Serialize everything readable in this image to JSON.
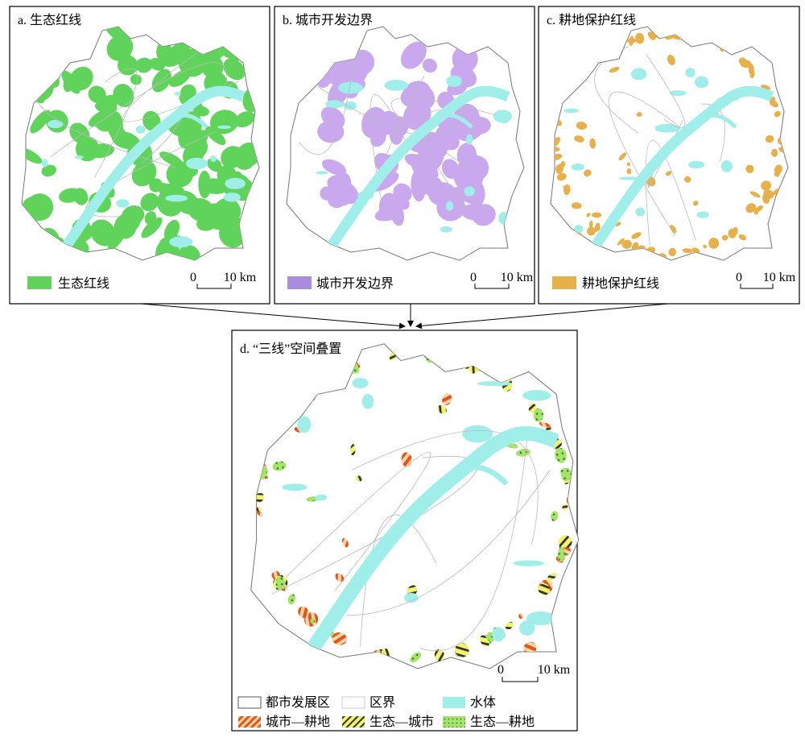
{
  "panels": [
    {
      "title": "a. 生态红线",
      "legend": "生态红线",
      "scale": [
        "0",
        "10 km"
      ]
    },
    {
      "title": "b. 城市开发边界",
      "legend": "城市开发边界",
      "scale": [
        "0",
        "10 km"
      ]
    },
    {
      "title": "c. 耕地保护红线",
      "legend": "耕地保护红线",
      "scale": [
        "0",
        "10 km"
      ]
    }
  ],
  "overlay": {
    "title": "d. “三线”空间叠置",
    "legend": [
      "都市发展区",
      "区界",
      "水体",
      "城市—耕地",
      "生态—城市",
      "生态—耕地"
    ],
    "scale": [
      "0",
      "10 km"
    ]
  }
}
